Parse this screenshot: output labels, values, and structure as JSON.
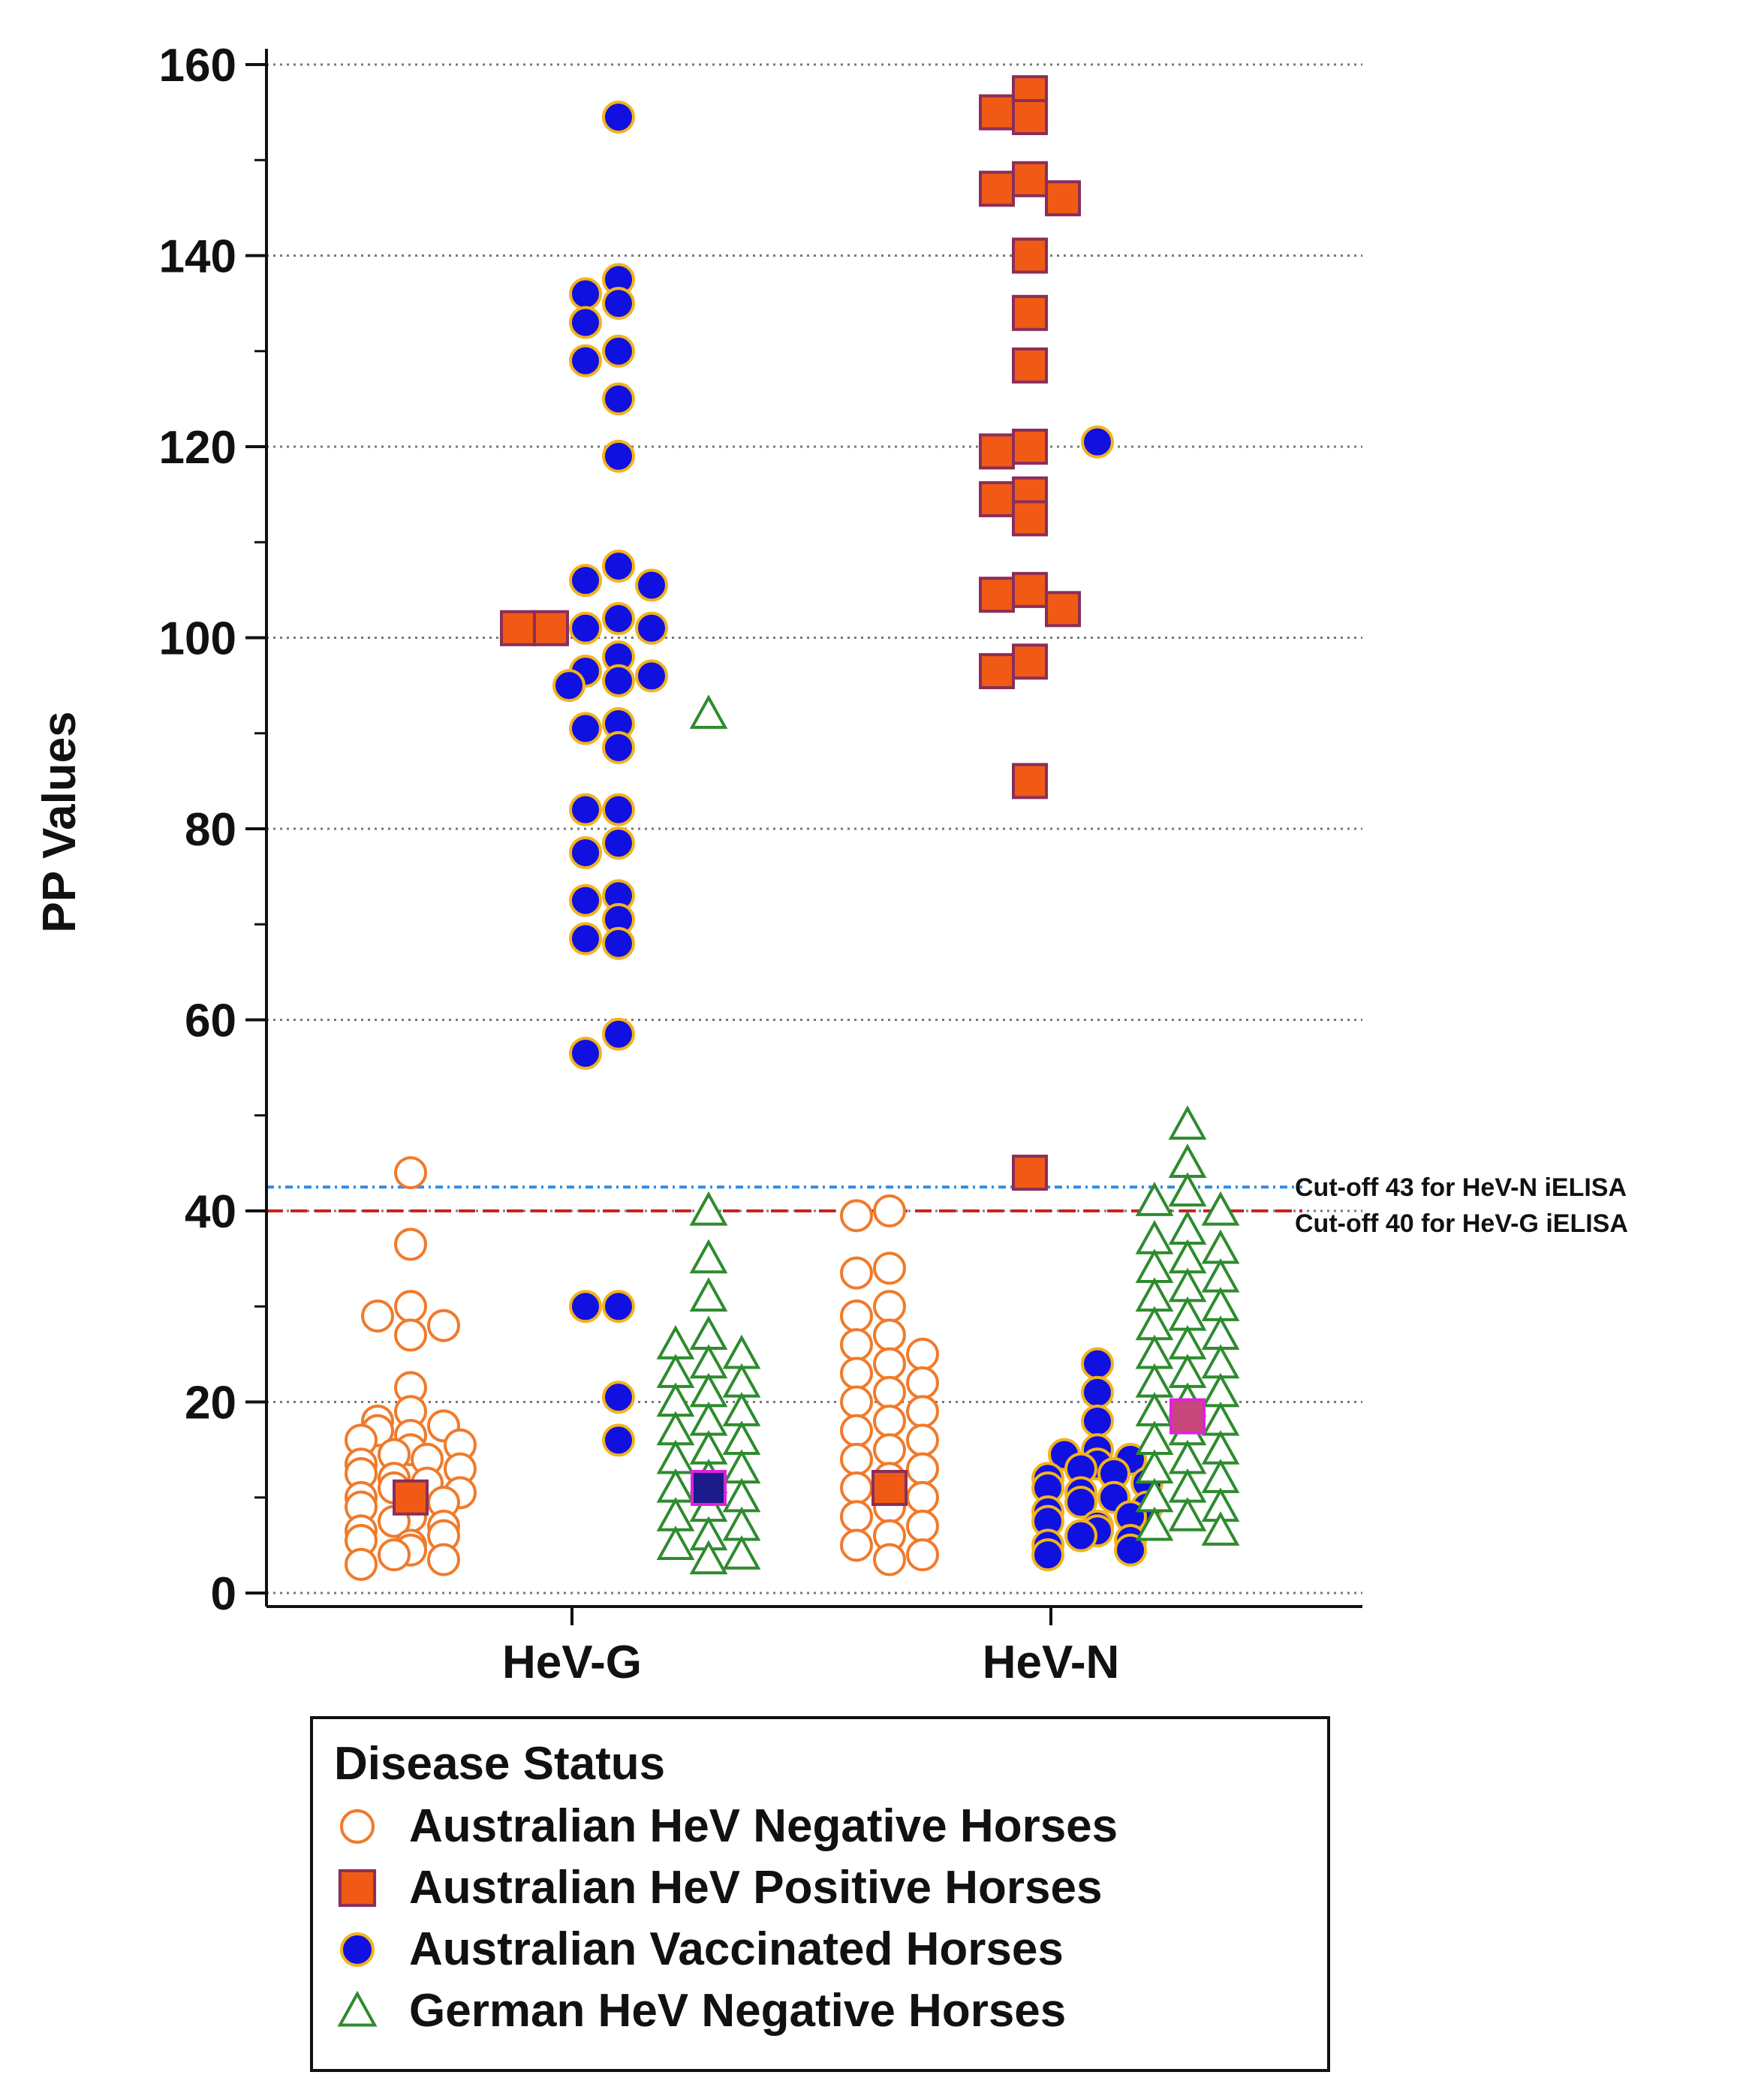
{
  "chart_data": {
    "type": "scatter",
    "title": "",
    "xlabel": "",
    "ylabel": "PP Values",
    "ylim": [
      0,
      160
    ],
    "yticks": [
      0,
      20,
      40,
      60,
      80,
      100,
      120,
      140,
      160
    ],
    "categories": [
      "HeV-G",
      "HeV-N"
    ],
    "grid": "horizontal-dotted",
    "legend": {
      "title": "Disease Status",
      "placement": "bottom"
    },
    "cutoffs": [
      {
        "label": "Cut-off 43 for HeV-N iELISA",
        "value": 42.5,
        "color": "#2b8ee6",
        "style": "dotted"
      },
      {
        "label": "Cut-off 40 for HeV-G iELISA",
        "value": 40,
        "color": "#cc2222",
        "style": "dashed"
      }
    ],
    "series": [
      {
        "name": "Australian HeV Negative Horses",
        "marker": "circle-open",
        "color": "#f07a2a",
        "points": [
          {
            "category": "HeV-G",
            "values": [
              44,
              36.5,
              30,
              29,
              28,
              27,
              21.5,
              19,
              18,
              17.5,
              17,
              16.5,
              16,
              15.5,
              15,
              14.5,
              14,
              13.5,
              13,
              12.5,
              12,
              11.5,
              11,
              10.5,
              10,
              9.5,
              9,
              8.5,
              8,
              7.5,
              7,
              6.5,
              6,
              5.5,
              5,
              4.5,
              4,
              3.5,
              3
            ]
          },
          {
            "category": "HeV-N",
            "values": [
              40,
              39.5,
              34,
              33.5,
              30,
              29,
              27,
              26,
              25,
              24,
              23,
              22,
              21,
              20,
              19,
              18,
              17,
              16,
              15,
              14,
              13,
              12,
              11,
              10,
              9,
              8,
              7,
              6,
              5,
              4,
              3.5
            ]
          }
        ],
        "mean": [
          10,
          11
        ]
      },
      {
        "name": "Australian HeV Positive Horses",
        "marker": "square",
        "color": "#f05a14",
        "points": [
          {
            "category": "HeV-G",
            "values": [
              101,
              101
            ]
          },
          {
            "category": "HeV-N",
            "values": [
              157,
              155,
              154.5,
              148,
              147,
              146,
              140,
              134,
              128.5,
              120,
              119.5,
              115,
              114.5,
              112.5,
              105,
              104.5,
              103,
              97.5,
              96.5,
              85,
              44
            ]
          }
        ]
      },
      {
        "name": "Australian Vaccinated Horses",
        "marker": "circle-filled",
        "color": "#1010e0",
        "points": [
          {
            "category": "HeV-G",
            "values": [
              154.5,
              137.5,
              136,
              135,
              133,
              130,
              129,
              125,
              119,
              107.5,
              106,
              105.5,
              102,
              101,
              101,
              98,
              96.5,
              96,
              95.5,
              95,
              91,
              90.5,
              88.5,
              82,
              82,
              78.5,
              77.5,
              73,
              72.5,
              70.5,
              68.5,
              68,
              58.5,
              56.5,
              30,
              30,
              20.5,
              16
            ]
          },
          {
            "category": "HeV-N",
            "values": [
              120.5,
              24,
              21,
              18,
              15,
              14.5,
              14,
              13.5,
              13,
              12.5,
              12,
              11.5,
              11,
              10.5,
              10,
              9.5,
              9,
              8.5,
              8,
              7.5,
              7,
              6.5,
              6,
              5.5,
              5,
              4.5,
              4
            ]
          }
        ]
      },
      {
        "name": "German HeV Negative Horses",
        "marker": "triangle-open",
        "color": "#2e8b2e",
        "points": [
          {
            "category": "HeV-G",
            "values": [
              92,
              40,
              35,
              31,
              27,
              26,
              25,
              24,
              23,
              22,
              21,
              20,
              19,
              18,
              17,
              16,
              15,
              14,
              13,
              12,
              11,
              10,
              9,
              8,
              7,
              6,
              5,
              4,
              3.5
            ]
          },
          {
            "category": "HeV-N",
            "values": [
              49,
              45,
              42,
              41,
              40,
              38,
              37,
              36,
              35,
              34,
              33,
              32,
              31,
              30,
              29,
              28,
              27,
              26,
              25,
              24,
              23,
              22,
              21,
              20,
              19,
              18,
              17,
              16,
              15,
              14,
              13,
              12,
              11,
              10,
              9,
              8,
              7,
              6.5
            ]
          }
        ],
        "mean": [
          11,
          18.5
        ]
      }
    ]
  }
}
